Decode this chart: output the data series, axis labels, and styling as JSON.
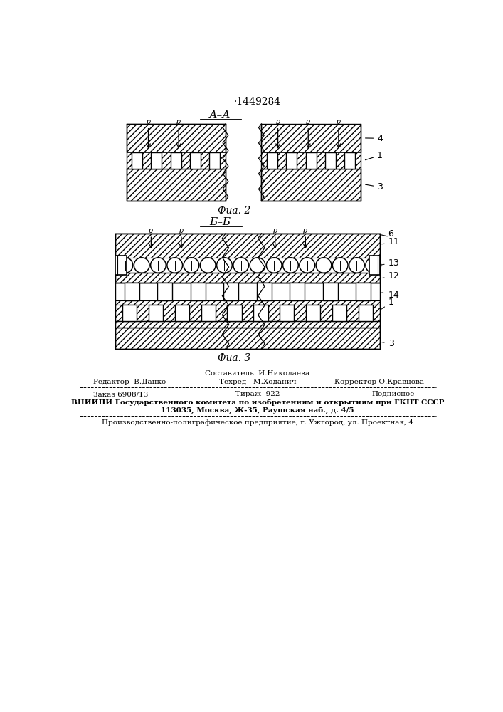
{
  "title_number": "·1449284",
  "fig2_label": "А–А",
  "fig3_label": "Б–Б",
  "fig2_caption": "Фиа. 2",
  "fig3_caption": "Фиа. 3",
  "footer_составитель": "Составитель  И.Николаева",
  "footer_editor": "Редактор  В.Данко",
  "footer_techred": "Техред   М.Ходанич",
  "footer_corrector": "Корректор О.Кравцова",
  "footer_order": "Заказ 6908/13",
  "footer_tirazh": "Тираж  922",
  "footer_podpisnoe": "Подписное",
  "footer_vniipи": "ВНИИПИ Государственного комитета по изобретениям и открытиям при ГКНТ СССР",
  "footer_address": "113035, Москва, Ж-35, Раушская наб., д. 4/5",
  "footer_prod": "Производственно-полиграфическое предприятие, г. Ужгород, ул. Проектная, 4",
  "bg_color": "#ffffff"
}
